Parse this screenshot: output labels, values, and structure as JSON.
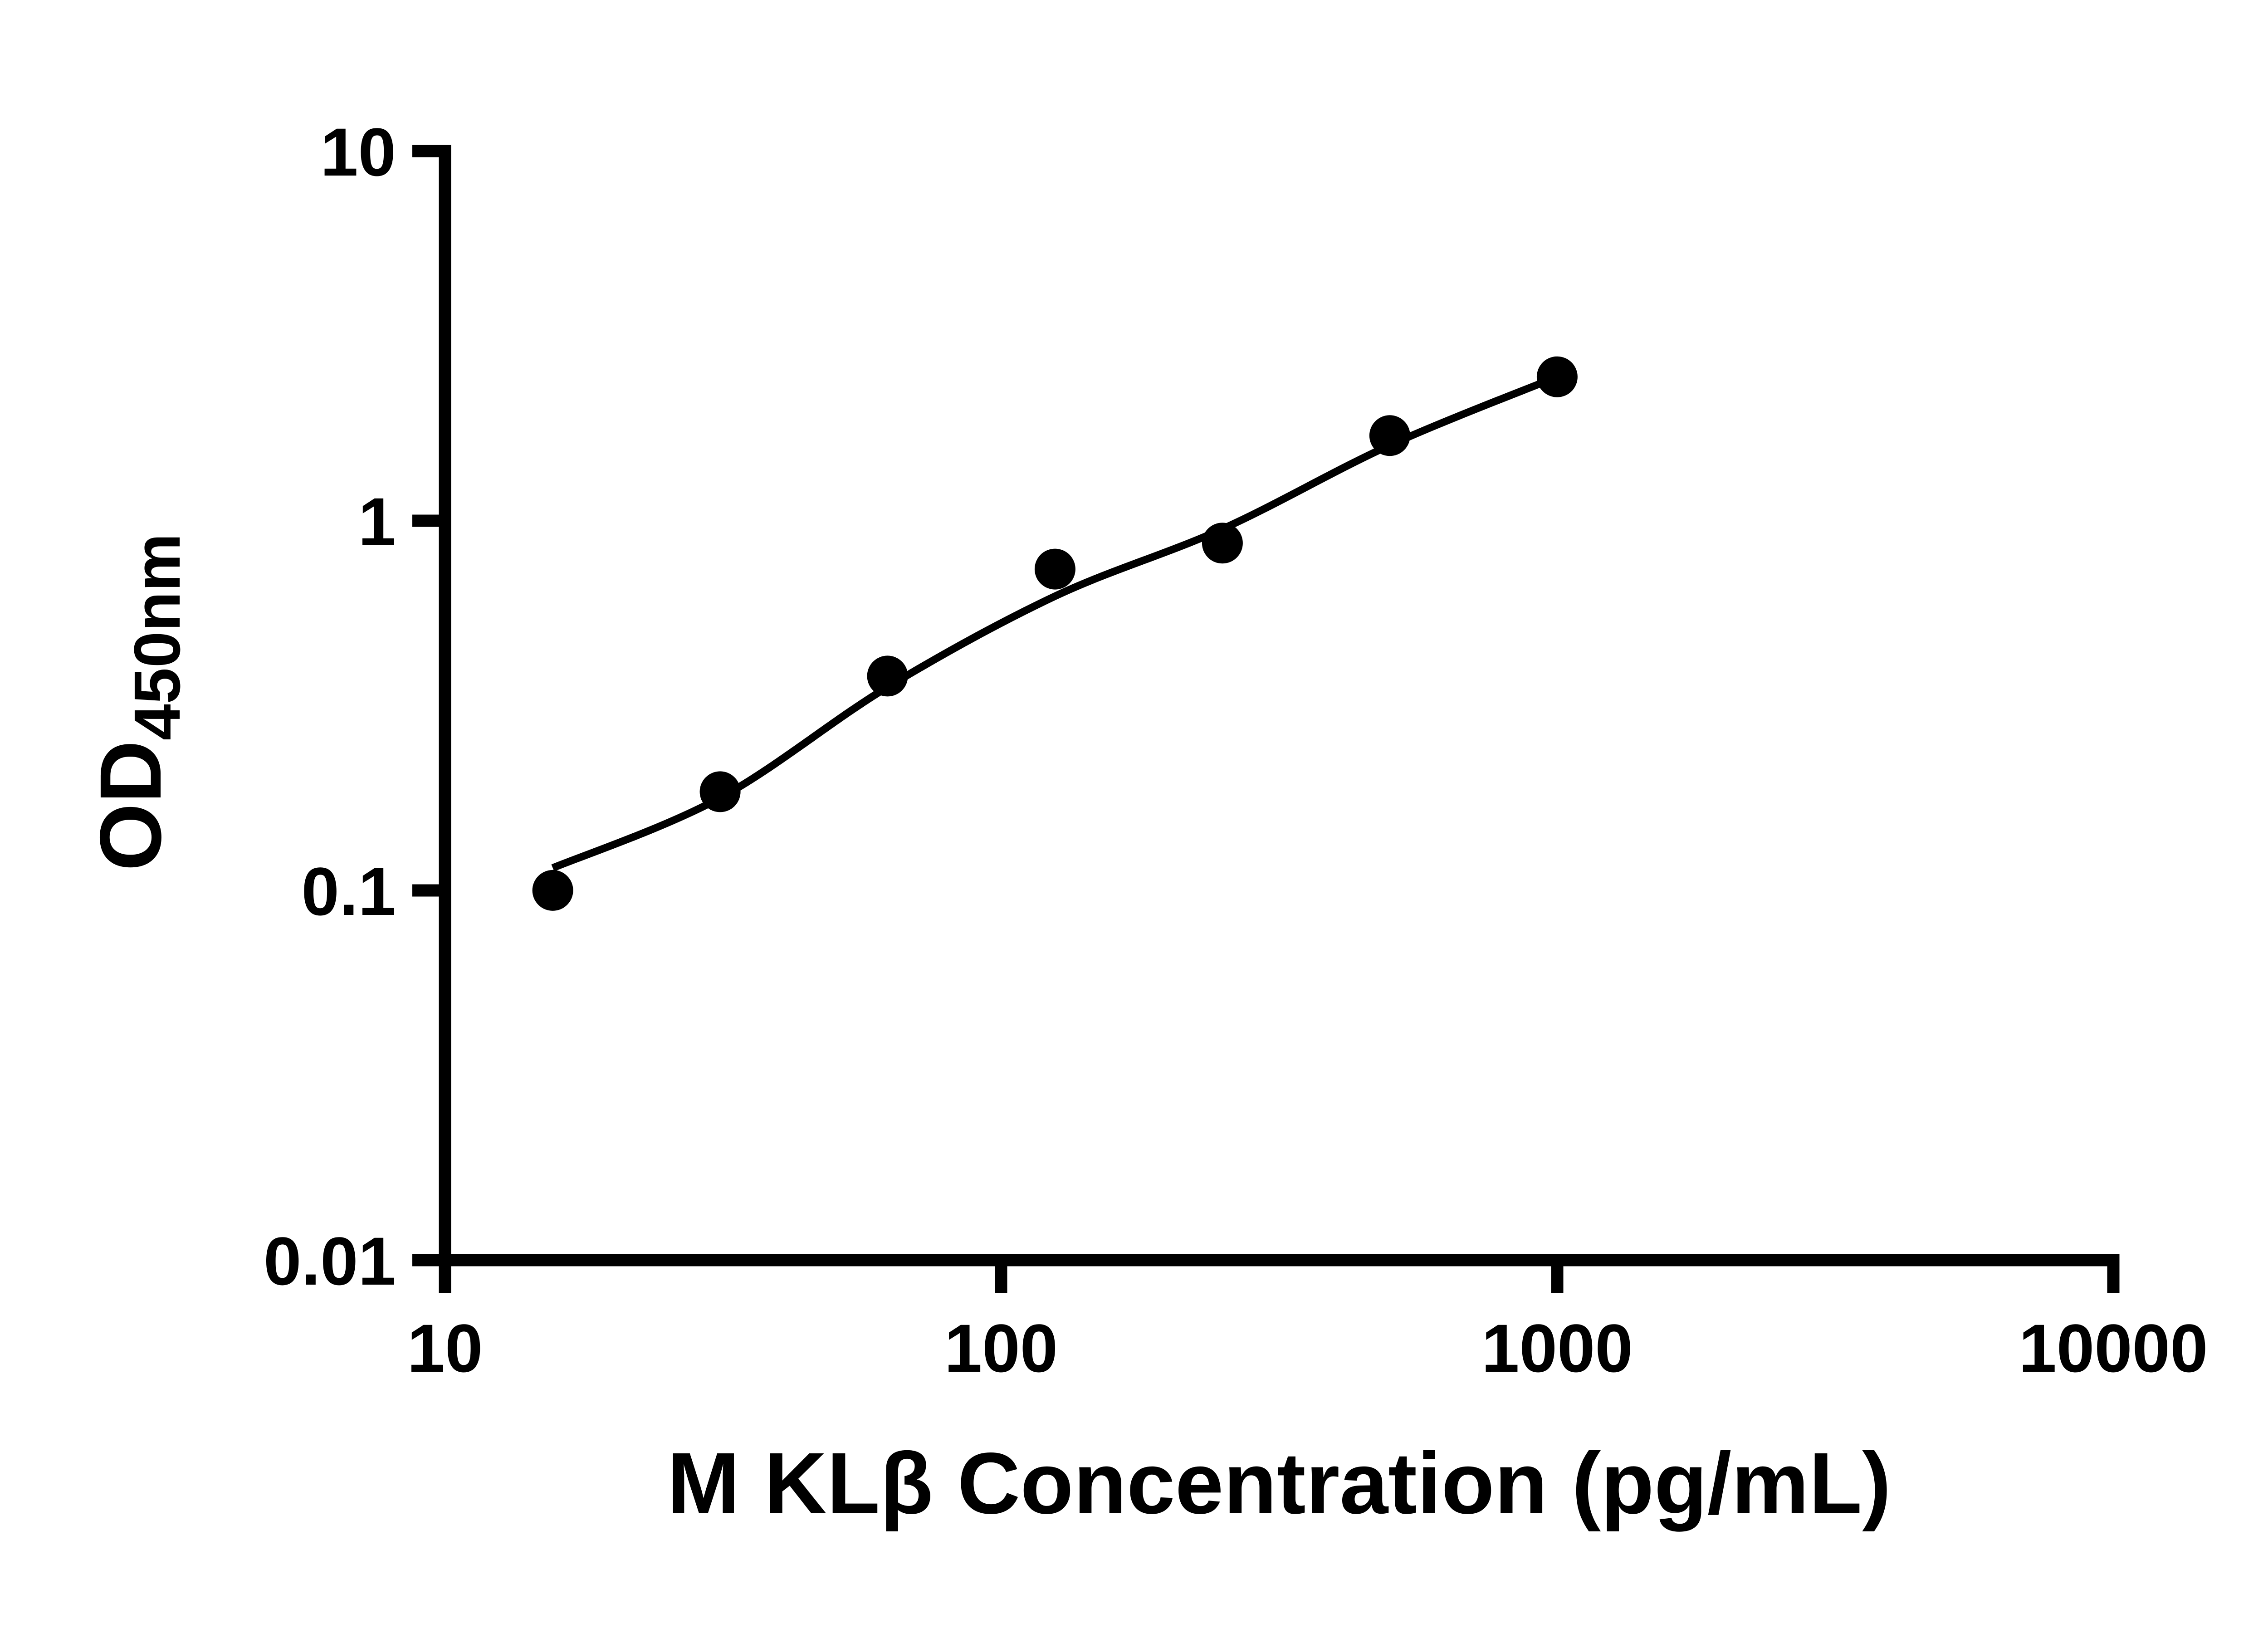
{
  "chart_data": {
    "type": "scatter",
    "title": "",
    "xlabel": "M KLβ Concentration (pg/mL)",
    "ylabel": "OD450nm",
    "ylabel_main": "OD",
    "ylabel_sub": "450nm",
    "x_scale": "log",
    "y_scale": "log",
    "xlim": [
      10,
      10000
    ],
    "ylim": [
      0.01,
      10
    ],
    "x_tick_values": [
      10,
      100,
      1000,
      10000
    ],
    "x_tick_labels": [
      "10",
      "100",
      "1000",
      "10000"
    ],
    "y_tick_values": [
      10,
      1,
      0.1,
      0.01
    ],
    "y_tick_labels": [
      "10",
      "1",
      "0.1",
      "0.01"
    ],
    "grid": false,
    "legend": false,
    "marker_color": "#000000",
    "line_color": "#000000",
    "axis_color": "#000000",
    "background_color": "#ffffff",
    "series": [
      {
        "x": [
          15.625,
          31.25,
          62.5,
          125,
          250,
          500,
          1000
        ],
        "y": [
          0.1,
          0.185,
          0.38,
          0.74,
          0.87,
          1.7,
          2.45
        ]
      }
    ],
    "trend_line": {
      "x": [
        15.625,
        31.25,
        62.5,
        125,
        250,
        500,
        1000
      ],
      "y": [
        0.115,
        0.178,
        0.355,
        0.625,
        0.95,
        1.6,
        2.45
      ]
    }
  }
}
